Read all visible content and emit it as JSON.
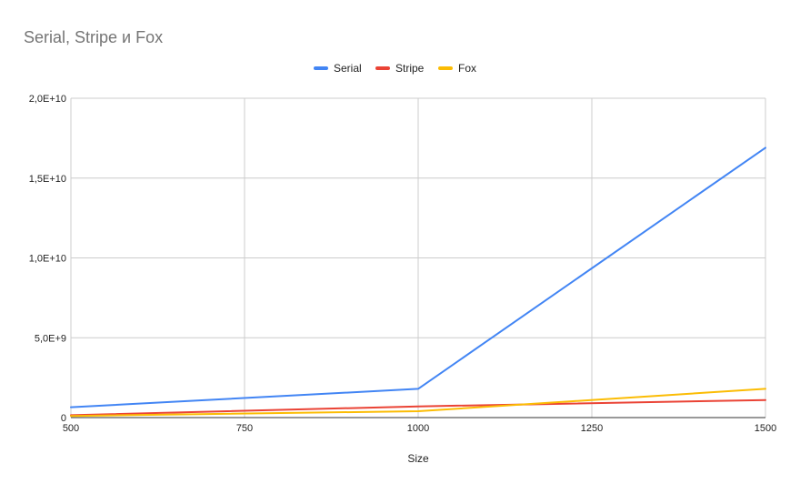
{
  "chart_data": {
    "type": "line",
    "title": "Serial, Stripe и Fox",
    "xlabel": "Size",
    "ylabel": "",
    "x": [
      500,
      1000,
      1500
    ],
    "xlim": [
      500,
      1500
    ],
    "ylim": [
      0,
      20000000000
    ],
    "x_ticks": [
      500,
      750,
      1000,
      1250,
      1500
    ],
    "x_tick_labels": [
      "500",
      "750",
      "1000",
      "1250",
      "1500"
    ],
    "y_ticks": [
      0,
      5000000000,
      10000000000,
      15000000000,
      20000000000
    ],
    "y_tick_labels": [
      "0",
      "5,0E+9",
      "1,0E+10",
      "1,5E+10",
      "2,0E+10"
    ],
    "grid": true,
    "legend_position": "top-center",
    "series": [
      {
        "name": "Serial",
        "color": "#4285f4",
        "values": [
          650000000,
          1800000000,
          16900000000
        ]
      },
      {
        "name": "Stripe",
        "color": "#ea4335",
        "values": [
          150000000,
          700000000,
          1100000000
        ]
      },
      {
        "name": "Fox",
        "color": "#fbbc04",
        "values": [
          100000000,
          400000000,
          1800000000
        ]
      }
    ]
  }
}
